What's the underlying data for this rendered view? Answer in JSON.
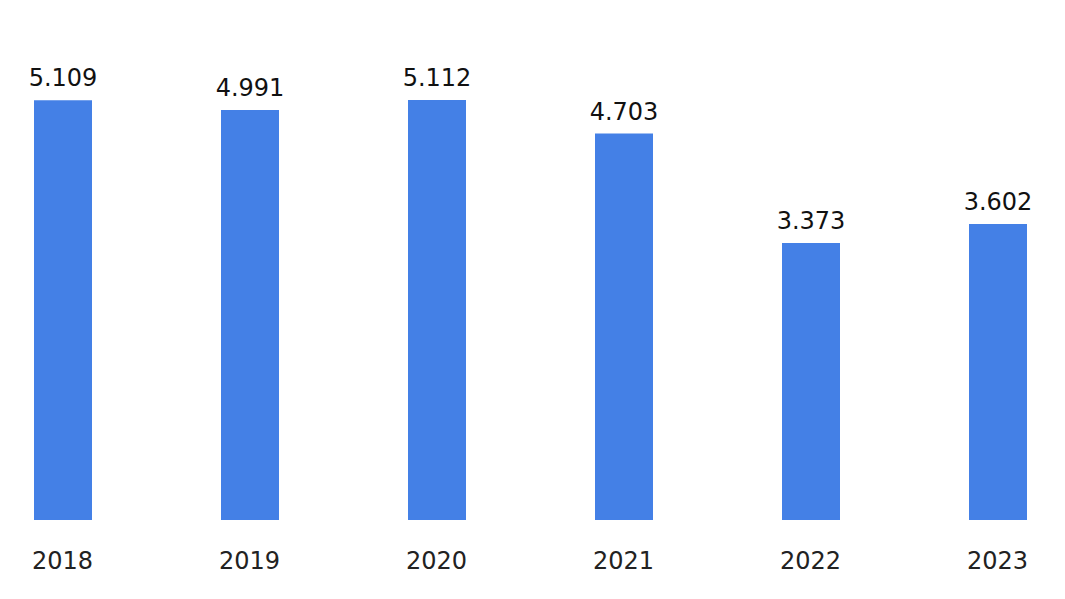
{
  "chart_data": {
    "type": "bar",
    "categories": [
      "2018",
      "2019",
      "2020",
      "2021",
      "2022",
      "2023"
    ],
    "values": [
      5.109,
      4.991,
      5.112,
      4.703,
      3.373,
      3.602
    ],
    "color": "#4480e6",
    "data_labels": true,
    "grid": false,
    "tick_labels": "x"
  }
}
